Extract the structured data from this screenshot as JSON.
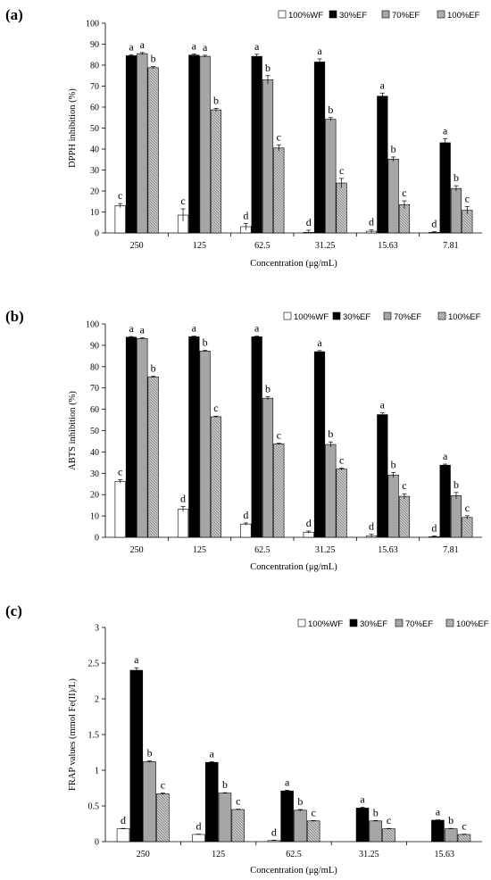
{
  "chart_data": [
    {
      "type": "bar",
      "panel_label": "(a)",
      "title": "",
      "xlabel": "Concentration (μg/mL)",
      "ylabel": "DPPH inhibition (%)",
      "ylim": [
        0,
        100
      ],
      "yticks": [
        0,
        10,
        20,
        30,
        40,
        50,
        60,
        70,
        80,
        90,
        100
      ],
      "grid": false,
      "legend_position": "top-right",
      "categories": [
        "250",
        "125",
        "62.5",
        "31.25",
        "15.63",
        "7.81"
      ],
      "series": [
        {
          "name": "100%WF",
          "fill": "white",
          "values": [
            13,
            8.5,
            3,
            0.3,
            0.8,
            0.3
          ],
          "errors": [
            1,
            3,
            1.5,
            1,
            0.6,
            0.3
          ],
          "letters": [
            "c",
            "c",
            "d",
            "d",
            "d",
            "d"
          ]
        },
        {
          "name": "30%EF",
          "fill": "black",
          "values": [
            84.5,
            84.8,
            84.2,
            81.5,
            65.2,
            43
          ],
          "errors": [
            0.5,
            0.5,
            1,
            1.5,
            1.5,
            2
          ],
          "letters": [
            "a",
            "a",
            "a",
            "a",
            "a",
            "a"
          ]
        },
        {
          "name": "70%EF",
          "fill": "gray",
          "values": [
            85.5,
            84.2,
            73,
            54.2,
            35.2,
            21.2
          ],
          "errors": [
            0.5,
            0.5,
            2,
            0.8,
            1,
            1.3
          ],
          "letters": [
            "a",
            "a",
            "b",
            "b",
            "b",
            "b"
          ]
        },
        {
          "name": "100%EF",
          "fill": "hatched",
          "values": [
            78.8,
            58.7,
            40.5,
            23.8,
            13.5,
            10.8
          ],
          "errors": [
            0.5,
            0.7,
            1.5,
            2.2,
            1.8,
            1.8
          ],
          "letters": [
            "b",
            "b",
            "c",
            "c",
            "c",
            "c"
          ]
        }
      ]
    },
    {
      "type": "bar",
      "panel_label": "(b)",
      "title": "",
      "xlabel": "Concentration (μg/mL)",
      "ylabel": "ABTS inhibition (%)",
      "ylim": [
        0,
        100
      ],
      "yticks": [
        0,
        10,
        20,
        30,
        40,
        50,
        60,
        70,
        80,
        90,
        100
      ],
      "grid": false,
      "legend_position": "top-right",
      "categories": [
        "250",
        "125",
        "62.5",
        "31.25",
        "15.63",
        "7.81"
      ],
      "series": [
        {
          "name": "100%WF",
          "fill": "white",
          "values": [
            26.2,
            13.2,
            6.2,
            2.4,
            0.6,
            0.3
          ],
          "errors": [
            0.8,
            1.2,
            0.5,
            0.5,
            0.8,
            0.3
          ],
          "letters": [
            "c",
            "d",
            "d",
            "d",
            "d",
            "d"
          ]
        },
        {
          "name": "30%EF",
          "fill": "black",
          "values": [
            93.8,
            94,
            94,
            87,
            57.5,
            33.8
          ],
          "errors": [
            0.3,
            0.3,
            0.3,
            0.5,
            0.8,
            0.5
          ],
          "letters": [
            "a",
            "a",
            "a",
            "a",
            "a",
            "a"
          ]
        },
        {
          "name": "70%EF",
          "fill": "gray",
          "values": [
            93.2,
            87.3,
            65.2,
            43.5,
            29.2,
            19.5
          ],
          "errors": [
            0.3,
            0.3,
            0.8,
            1.2,
            1.2,
            1.5
          ],
          "letters": [
            "a",
            "b",
            "b",
            "b",
            "b",
            "b"
          ]
        },
        {
          "name": "100%EF",
          "fill": "hatched",
          "values": [
            75.2,
            56.5,
            43.8,
            32,
            19.2,
            9.3
          ],
          "errors": [
            0.3,
            0.3,
            0.3,
            0.5,
            1.2,
            0.8
          ],
          "letters": [
            "b",
            "c",
            "c",
            "c",
            "c",
            "c"
          ]
        }
      ]
    },
    {
      "type": "bar",
      "panel_label": "(c)",
      "title": "",
      "xlabel": "Concentration (μg/mL)",
      "ylabel": "FRAP values (mmol Fe(II)/L)",
      "ylim": [
        0,
        3
      ],
      "yticks": [
        0,
        0.5,
        1,
        1.5,
        2,
        2.5,
        3
      ],
      "grid": false,
      "legend_position": "top-right",
      "categories": [
        "250",
        "125",
        "62.5",
        "31.25",
        "15.63"
      ],
      "series": [
        {
          "name": "100%WF",
          "fill": "white",
          "values": [
            0.18,
            0.1,
            0.015,
            0,
            0
          ],
          "errors": [
            0.005,
            0.005,
            0.005,
            0,
            0
          ],
          "letters": [
            "d",
            "d",
            "d",
            "",
            ""
          ]
        },
        {
          "name": "30%EF",
          "fill": "black",
          "values": [
            2.4,
            1.11,
            0.71,
            0.47,
            0.3
          ],
          "errors": [
            0.035,
            0.01,
            0.01,
            0.01,
            0.005
          ],
          "letters": [
            "a",
            "a",
            "a",
            "a",
            "a"
          ]
        },
        {
          "name": "70%EF",
          "fill": "gray",
          "values": [
            1.12,
            0.68,
            0.44,
            0.29,
            0.18
          ],
          "errors": [
            0.01,
            0.005,
            0.01,
            0.005,
            0.005
          ],
          "letters": [
            "b",
            "b",
            "b",
            "b",
            "b"
          ]
        },
        {
          "name": "100%EF",
          "fill": "hatched",
          "values": [
            0.67,
            0.45,
            0.29,
            0.18,
            0.1
          ],
          "errors": [
            0.01,
            0.005,
            0.005,
            0.005,
            0.005
          ],
          "letters": [
            "c",
            "c",
            "c",
            "c",
            "c"
          ]
        }
      ]
    }
  ]
}
